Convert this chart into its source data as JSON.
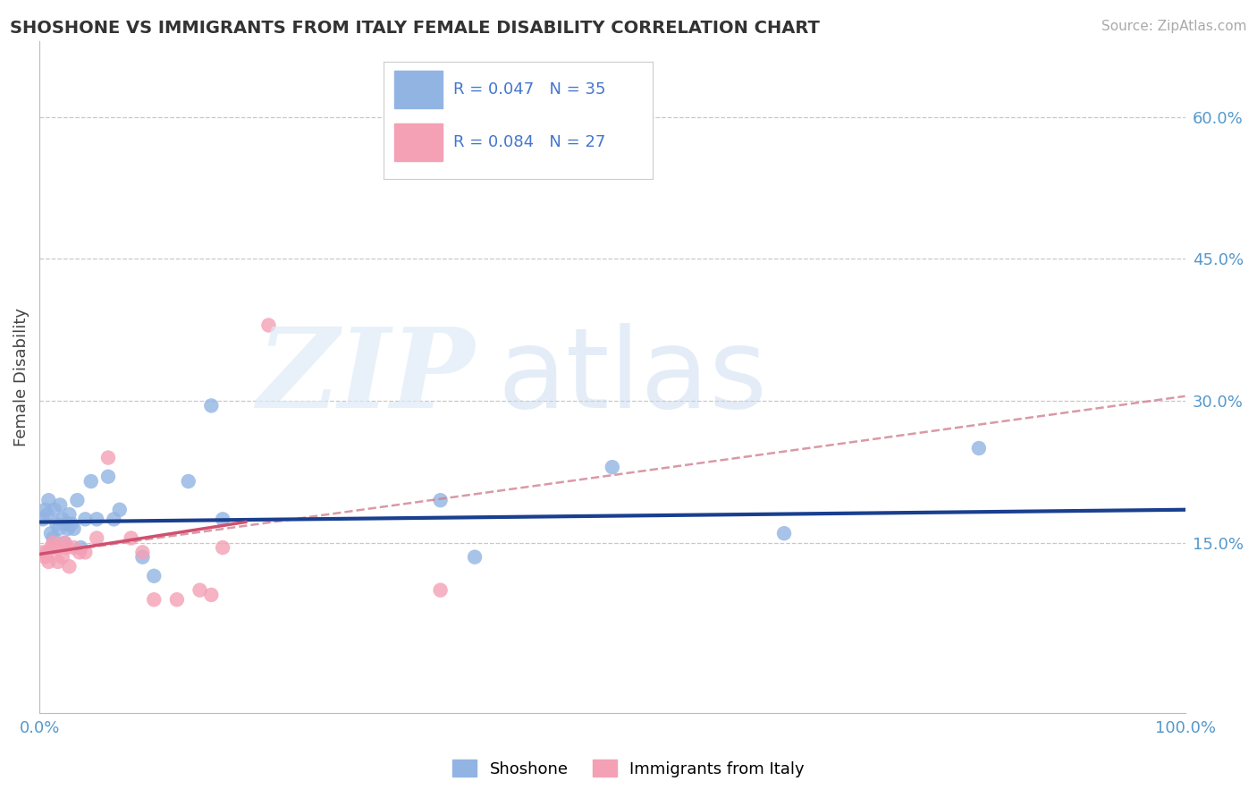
{
  "title": "SHOSHONE VS IMMIGRANTS FROM ITALY FEMALE DISABILITY CORRELATION CHART",
  "source": "Source: ZipAtlas.com",
  "ylabel": "Female Disability",
  "xlim": [
    0,
    1.0
  ],
  "ylim": [
    -0.03,
    0.68
  ],
  "yticks": [
    0.15,
    0.3,
    0.45,
    0.6
  ],
  "ytick_labels": [
    "15.0%",
    "30.0%",
    "45.0%",
    "60.0%"
  ],
  "shoshone_R": 0.047,
  "shoshone_N": 35,
  "italy_R": 0.084,
  "italy_N": 27,
  "shoshone_color": "#92b4e3",
  "italy_color": "#f4a0b5",
  "shoshone_line_color": "#1a3f8f",
  "italy_line_color": "#d05070",
  "italy_dash_color": "#d08090",
  "background_color": "#ffffff",
  "grid_color": "#c8c8c8",
  "shoshone_x": [
    0.003,
    0.005,
    0.007,
    0.008,
    0.01,
    0.012,
    0.013,
    0.015,
    0.017,
    0.018,
    0.02,
    0.022,
    0.024,
    0.025,
    0.026,
    0.028,
    0.03,
    0.033,
    0.036,
    0.04,
    0.045,
    0.05,
    0.06,
    0.065,
    0.07,
    0.09,
    0.1,
    0.13,
    0.15,
    0.16,
    0.35,
    0.38,
    0.5,
    0.65,
    0.82
  ],
  "shoshone_y": [
    0.175,
    0.185,
    0.18,
    0.195,
    0.16,
    0.155,
    0.185,
    0.17,
    0.165,
    0.19,
    0.175,
    0.15,
    0.17,
    0.165,
    0.18,
    0.17,
    0.165,
    0.195,
    0.145,
    0.175,
    0.215,
    0.175,
    0.22,
    0.175,
    0.185,
    0.135,
    0.115,
    0.215,
    0.295,
    0.175,
    0.195,
    0.135,
    0.23,
    0.16,
    0.25
  ],
  "italy_x": [
    0.003,
    0.005,
    0.007,
    0.008,
    0.01,
    0.012,
    0.014,
    0.016,
    0.018,
    0.02,
    0.022,
    0.024,
    0.026,
    0.03,
    0.035,
    0.04,
    0.05,
    0.06,
    0.08,
    0.09,
    0.1,
    0.12,
    0.14,
    0.15,
    0.16,
    0.2,
    0.35
  ],
  "italy_y": [
    0.14,
    0.135,
    0.14,
    0.13,
    0.145,
    0.15,
    0.145,
    0.13,
    0.145,
    0.135,
    0.15,
    0.145,
    0.125,
    0.145,
    0.14,
    0.14,
    0.155,
    0.24,
    0.155,
    0.14,
    0.09,
    0.09,
    0.1,
    0.095,
    0.145,
    0.38,
    0.1
  ]
}
